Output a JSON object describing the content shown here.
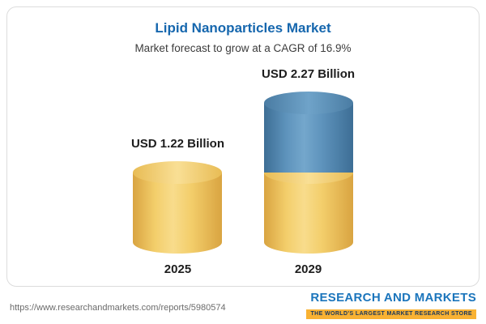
{
  "chart_data": {
    "type": "bar",
    "bar_style": "3d-cylinder",
    "title": "Lipid Nanoparticles Market",
    "subtitle": "Market forecast to grow at a CAGR of 16.9%",
    "categories": [
      "2025",
      "2029"
    ],
    "values": [
      1.22,
      2.27
    ],
    "value_labels": [
      "USD 1.22 Billion",
      "USD 2.27 Billion"
    ],
    "unit": "USD Billion",
    "cagr_percent": 16.9,
    "segments": {
      "2025": [
        {
          "color": "#F2CC66",
          "value": 1.22
        }
      ],
      "2029": [
        {
          "color": "#F2CC66",
          "value": 1.22
        },
        {
          "color": "#5587B0",
          "value": 1.05
        }
      ]
    },
    "legend": "none",
    "gridlines": false,
    "axes_shown": false
  },
  "footer": {
    "url": "https://www.researchandmarkets.com/reports/5980574",
    "brand": "RESEARCH AND MARKETS",
    "tagline": "THE WORLD'S LARGEST MARKET RESEARCH STORE"
  },
  "colors": {
    "title_blue": "#1667AE",
    "bar_yellow": "#F2CC66",
    "bar_blue": "#5587B0",
    "logo_blue": "#1B75BC",
    "logo_yellow_bar": "#F9B233",
    "text_dark": "#1D1D1D",
    "url_gray": "#6B6B6B",
    "card_border": "#DCDCDC"
  }
}
